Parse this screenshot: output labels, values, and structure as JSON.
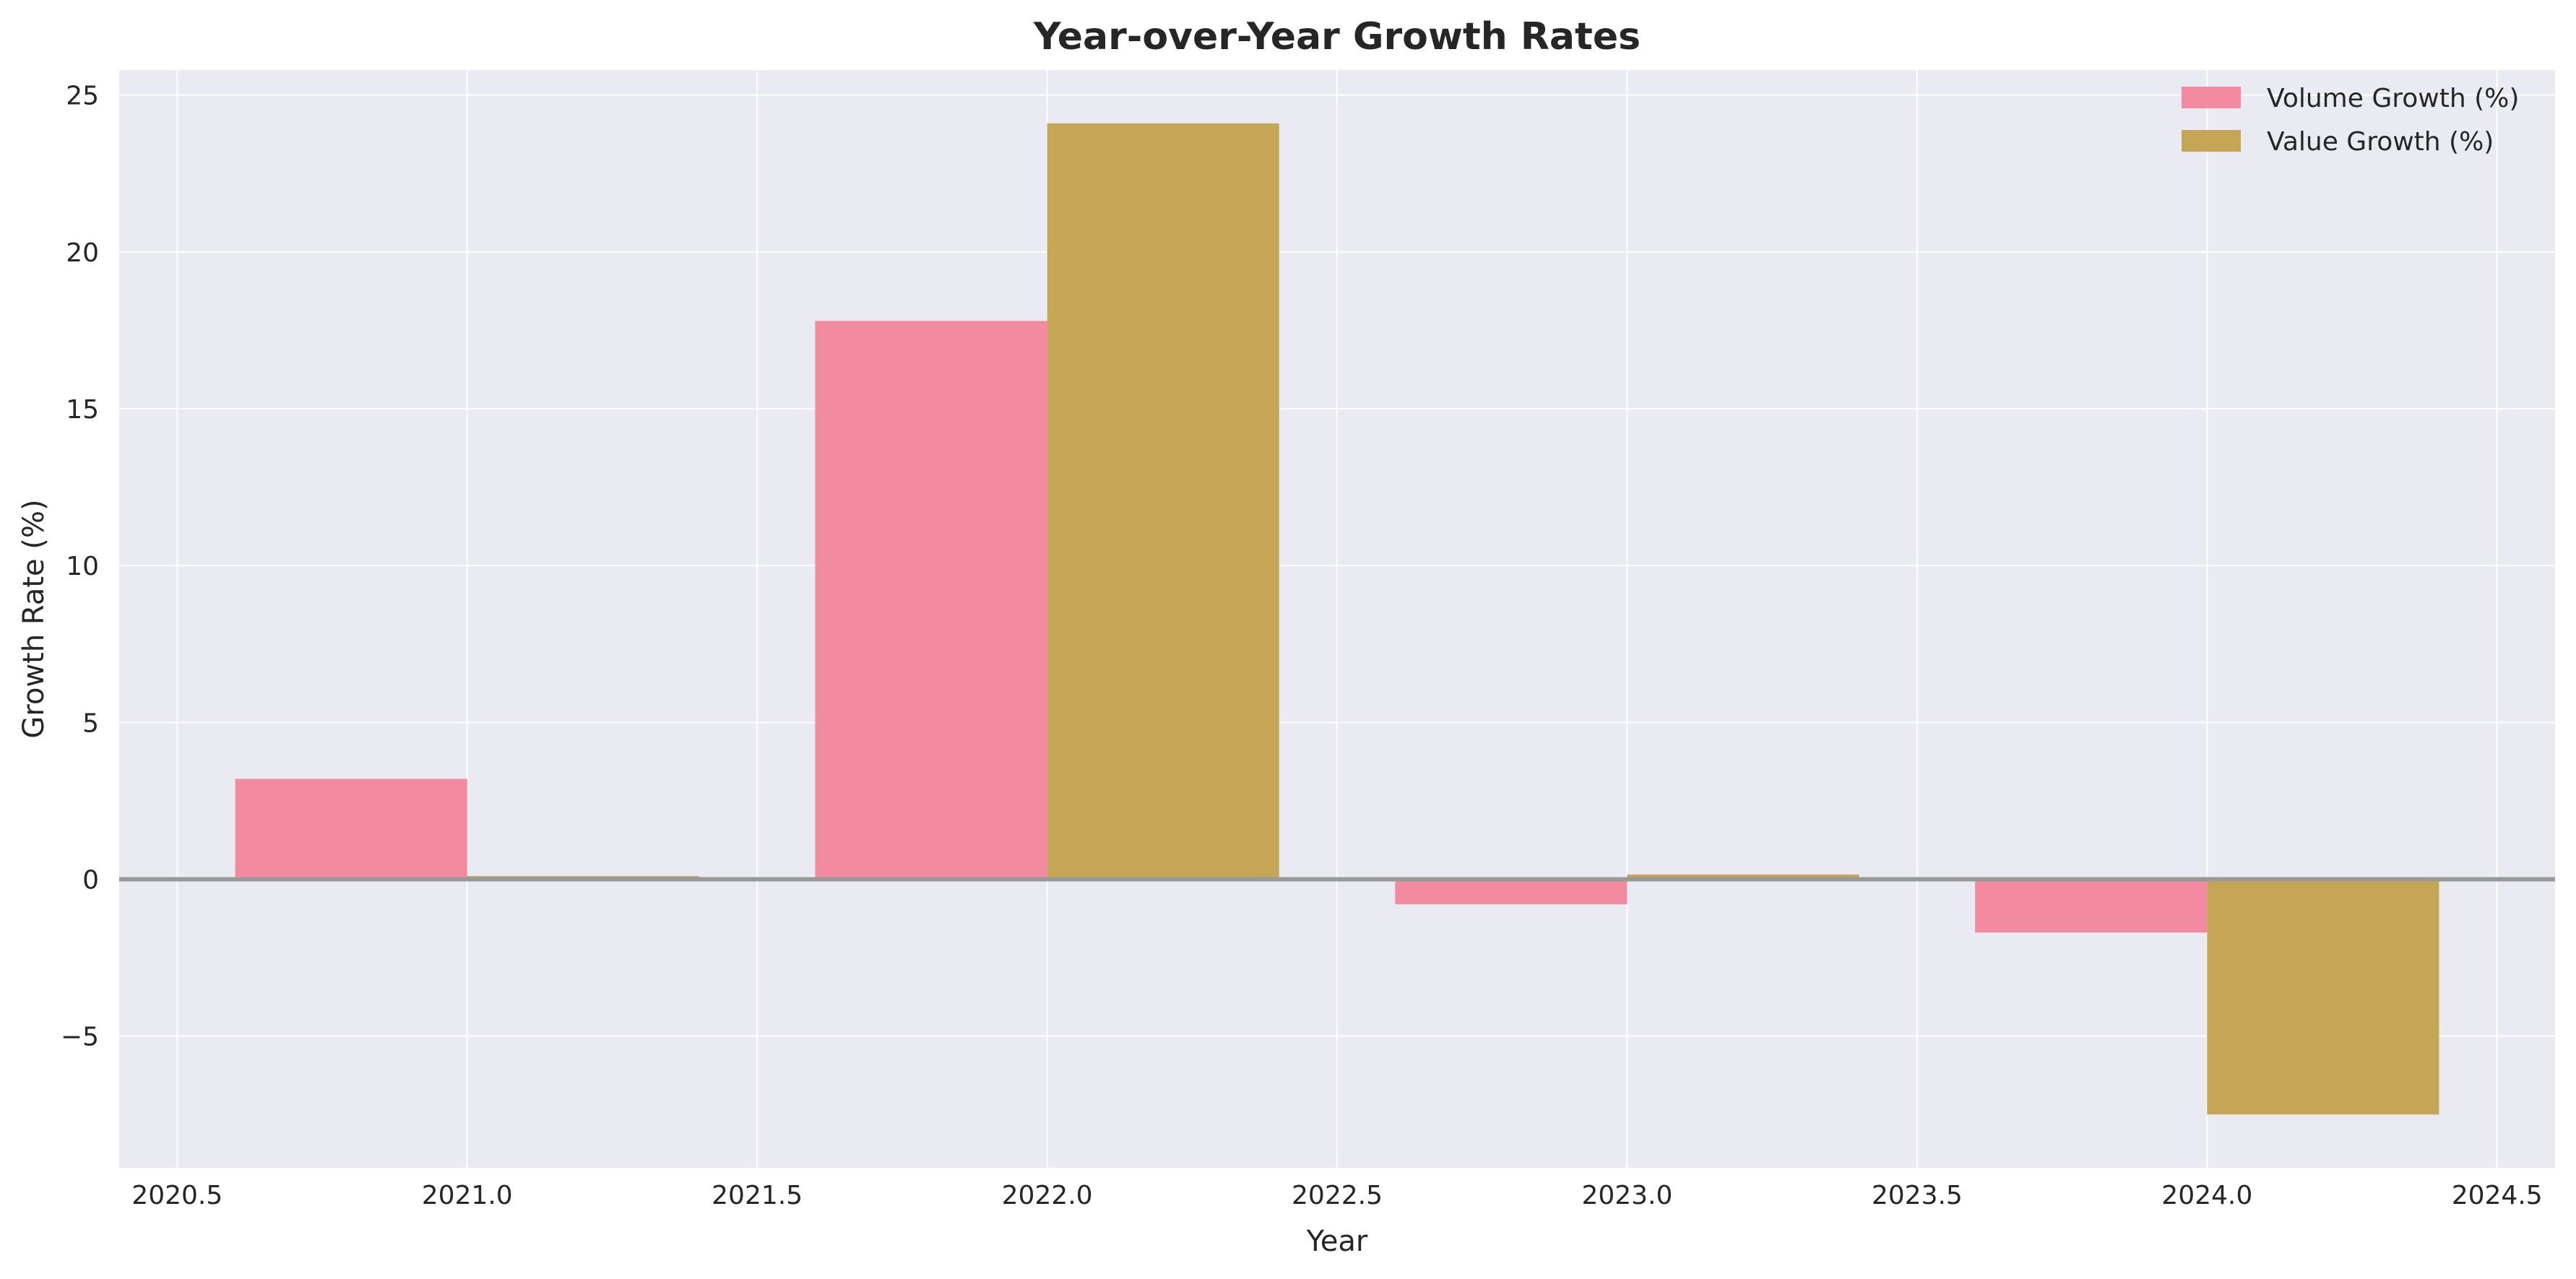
{
  "chart_data": {
    "type": "bar",
    "title": "Year-over-Year Growth Rates",
    "xlabel": "Year",
    "ylabel": "Growth Rate (%)",
    "xlim": [
      2020.4,
      2024.6
    ],
    "ylim": [
      -9.2,
      25.8
    ],
    "xticks": [
      2020.5,
      2021.0,
      2021.5,
      2022.0,
      2022.5,
      2023.0,
      2023.5,
      2024.0,
      2024.5
    ],
    "xtick_labels": [
      "2020.5",
      "2021.0",
      "2021.5",
      "2022.0",
      "2022.5",
      "2023.0",
      "2023.5",
      "2024.0",
      "2024.5"
    ],
    "yticks": [
      -5,
      0,
      5,
      10,
      15,
      20,
      25
    ],
    "ytick_labels": [
      "−5",
      "0",
      "5",
      "10",
      "15",
      "20",
      "25"
    ],
    "x": [
      2021,
      2022,
      2023,
      2024
    ],
    "bar_width": 0.4,
    "series": [
      {
        "name": "Volume Growth (%)",
        "color": "#f28ba0",
        "offset": -0.2,
        "values": [
          3.2,
          17.8,
          -0.8,
          -1.7
        ]
      },
      {
        "name": "Value Growth (%)",
        "color": "#c4a656",
        "offset": 0.2,
        "values": [
          0.1,
          24.1,
          0.15,
          -7.5
        ]
      }
    ],
    "reference_line": {
      "y": 0,
      "color": "#999999"
    },
    "grid": true,
    "legend_position": "top-right",
    "colors": {
      "plot_background": "#eaeaf2",
      "grid": "#ffffff",
      "text": "#262626"
    }
  }
}
